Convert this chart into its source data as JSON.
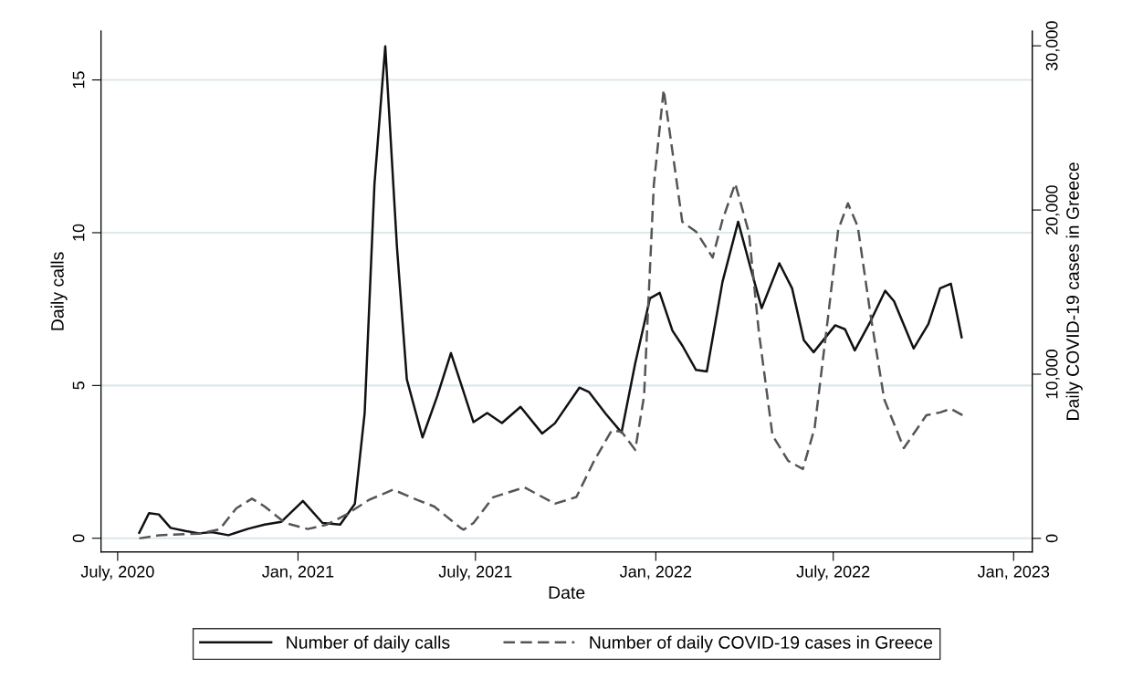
{
  "chart_data": {
    "type": "line",
    "xlabel": "Date",
    "ylabel": "Daily calls",
    "y2label": "Daily COVID-19 cases in Greece",
    "xlim": [
      "2020-06-14",
      "2023-01-20"
    ],
    "ylim": [
      -0.45,
      16.6
    ],
    "y2lim": [
      -830,
      30900
    ],
    "xticks": [
      {
        "value": "2020-07-01",
        "label": "July, 2020"
      },
      {
        "value": "2021-01-01",
        "label": "Jan, 2021"
      },
      {
        "value": "2021-07-01",
        "label": "July, 2021"
      },
      {
        "value": "2022-01-01",
        "label": "Jan, 2022"
      },
      {
        "value": "2022-07-01",
        "label": "July, 2022"
      },
      {
        "value": "2023-01-01",
        "label": "Jan, 2023"
      }
    ],
    "yticks": [
      0,
      5,
      10,
      15
    ],
    "y2ticks": [
      0,
      {
        "value": 10000,
        "label": "10,000"
      },
      {
        "value": 20000,
        "label": "20,000"
      },
      {
        "value": 30000,
        "label": "30,000"
      }
    ],
    "grid": "y",
    "legend": "bottom",
    "series": [
      {
        "name": "Number of daily calls",
        "color": "#111111",
        "line_style": "solid",
        "x": [
          "2020-07-23",
          "2020-08-02",
          "2020-08-12",
          "2020-08-24",
          "2020-09-08",
          "2020-09-22",
          "2020-10-05",
          "2020-10-22",
          "2020-11-11",
          "2020-11-28",
          "2020-12-15",
          "2021-01-06",
          "2021-01-26",
          "2021-02-13",
          "2021-02-28",
          "2021-03-10",
          "2021-03-20",
          "2021-03-31",
          "2021-04-12",
          "2021-04-22",
          "2021-05-08",
          "2021-05-23",
          "2021-06-06",
          "2021-06-29",
          "2021-07-13",
          "2021-07-28",
          "2021-08-16",
          "2021-09-07",
          "2021-09-20",
          "2021-10-15",
          "2021-10-25",
          "2021-11-11",
          "2021-11-27",
          "2021-12-11",
          "2021-12-26",
          "2022-01-05",
          "2022-01-18",
          "2022-01-28",
          "2022-02-11",
          "2022-02-22",
          "2022-03-10",
          "2022-03-26",
          "2022-04-08",
          "2022-04-19",
          "2022-05-07",
          "2022-05-20",
          "2022-06-01",
          "2022-06-11",
          "2022-07-03",
          "2022-07-13",
          "2022-07-23",
          "2022-08-08",
          "2022-08-23",
          "2022-09-01",
          "2022-09-21",
          "2022-10-06",
          "2022-10-18",
          "2022-10-29",
          "2022-11-09"
        ],
        "values": [
          0.18,
          0.82,
          0.78,
          0.34,
          0.24,
          0.16,
          0.2,
          0.1,
          0.31,
          0.45,
          0.54,
          1.22,
          0.5,
          0.45,
          1.13,
          4.1,
          11.6,
          16.1,
          9.5,
          5.2,
          3.3,
          4.65,
          6.06,
          3.8,
          4.1,
          3.77,
          4.3,
          3.43,
          3.76,
          4.93,
          4.78,
          4.07,
          3.46,
          5.73,
          7.85,
          8.03,
          6.79,
          6.31,
          5.51,
          5.46,
          8.39,
          10.36,
          8.81,
          7.53,
          9.0,
          8.18,
          6.48,
          6.09,
          6.97,
          6.84,
          6.15,
          7.1,
          8.1,
          7.76,
          6.21,
          7.01,
          8.18,
          8.33,
          6.58
        ]
      },
      {
        "name": "Number of daily COVID-19 cases in Greece",
        "color": "#555555",
        "line_style": "dashed",
        "axis": "y2",
        "x": [
          "2020-07-23",
          "2020-08-12",
          "2020-09-22",
          "2020-10-13",
          "2020-10-30",
          "2020-11-15",
          "2020-11-28",
          "2020-12-19",
          "2021-01-11",
          "2021-01-30",
          "2021-02-19",
          "2021-03-14",
          "2021-04-08",
          "2021-05-03",
          "2021-05-20",
          "2021-06-16",
          "2021-06-19",
          "2021-06-29",
          "2021-07-19",
          "2021-08-20",
          "2021-09-20",
          "2021-10-12",
          "2021-10-30",
          "2021-11-17",
          "2021-11-27",
          "2021-12-11",
          "2021-12-20",
          "2021-12-30",
          "2022-01-09",
          "2022-01-18",
          "2022-01-28",
          "2022-02-11",
          "2022-02-28",
          "2022-03-10",
          "2022-03-23",
          "2022-04-06",
          "2022-04-16",
          "2022-04-30",
          "2022-05-16",
          "2022-05-31",
          "2022-06-12",
          "2022-06-26",
          "2022-07-06",
          "2022-07-16",
          "2022-07-26",
          "2022-08-08",
          "2022-08-22",
          "2022-09-11",
          "2022-10-04",
          "2022-10-18",
          "2022-10-29",
          "2022-11-10"
        ],
        "values": [
          0,
          190,
          290,
          550,
          1830,
          2420,
          1940,
          940,
          570,
          830,
          1440,
          2330,
          2970,
          2330,
          1940,
          630,
          530,
          940,
          2500,
          3110,
          2110,
          2520,
          4720,
          6580,
          6500,
          5390,
          8670,
          21560,
          27330,
          23560,
          19280,
          18690,
          17110,
          19390,
          21610,
          18610,
          12630,
          6280,
          4720,
          4220,
          6720,
          13630,
          18780,
          20410,
          19000,
          13630,
          8470,
          5500,
          7500,
          7670,
          7890,
          7500
        ]
      }
    ]
  }
}
